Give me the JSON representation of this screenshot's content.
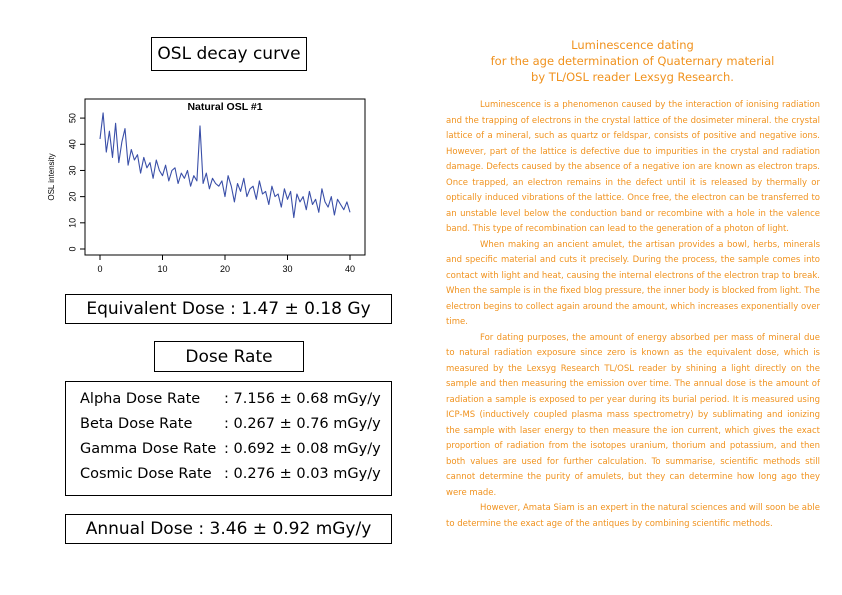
{
  "left_panel": {
    "chart_heading": "OSL decay curve",
    "equivalent_dose": "Equivalent Dose : 1.47 ± 0.18 Gy",
    "dose_rate_heading": "Dose Rate",
    "dose_rates": [
      {
        "name": "Alpha Dose Rate",
        "value": ": 7.156 ± 0.68 mGy/y"
      },
      {
        "name": "Beta Dose Rate",
        "value": ": 0.267 ± 0.76 mGy/y"
      },
      {
        "name": "Gamma Dose Rate",
        "value": ": 0.692 ± 0.08 mGy/y"
      },
      {
        "name": "Cosmic Dose Rate",
        "value": ": 0.276 ± 0.03 mGy/y"
      }
    ],
    "annual_dose": "Annual Dose : 3.46 ± 0.92 mGy/y"
  },
  "chart_data": {
    "type": "line",
    "title": "Natural OSL #1",
    "xlabel": "",
    "ylabel": "OSL intensity",
    "xlim": [
      0,
      40
    ],
    "ylim": [
      0,
      55
    ],
    "xticks": [
      0,
      10,
      20,
      30,
      40
    ],
    "yticks": [
      0,
      10,
      20,
      30,
      40,
      50
    ],
    "line_color": "#3a4fa8",
    "grid": false,
    "x": [
      0,
      0.5,
      1,
      1.5,
      2,
      2.5,
      3,
      3.5,
      4,
      4.5,
      5,
      5.5,
      6,
      6.5,
      7,
      7.5,
      8,
      8.5,
      9,
      9.5,
      10,
      10.5,
      11,
      11.5,
      12,
      12.5,
      13,
      13.5,
      14,
      14.5,
      15,
      15.5,
      16,
      16.5,
      17,
      17.5,
      18,
      18.5,
      19,
      19.5,
      20,
      20.5,
      21,
      21.5,
      22,
      22.5,
      23,
      23.5,
      24,
      24.5,
      25,
      25.5,
      26,
      26.5,
      27,
      27.5,
      28,
      28.5,
      29,
      29.5,
      30,
      30.5,
      31,
      31.5,
      32,
      32.5,
      33,
      33.5,
      34,
      34.5,
      35,
      35.5,
      36,
      36.5,
      37,
      37.5,
      38,
      38.5,
      39,
      39.5,
      40
    ],
    "y": [
      42,
      52,
      37,
      45,
      35,
      48,
      33,
      41,
      46,
      32,
      38,
      34,
      36,
      29,
      35,
      31,
      33,
      27,
      34,
      30,
      28,
      32,
      26,
      30,
      31,
      25,
      29,
      27,
      30,
      24,
      28,
      26,
      47,
      25,
      29,
      23,
      27,
      25,
      24,
      26,
      20,
      28,
      24,
      18,
      25,
      22,
      27,
      20,
      23,
      24,
      19,
      26,
      21,
      22,
      17,
      24,
      20,
      21,
      16,
      23,
      19,
      22,
      12,
      21,
      18,
      20,
      15,
      22,
      17,
      19,
      14,
      23,
      18,
      16,
      20,
      13,
      19,
      17,
      15,
      18,
      14
    ]
  },
  "article": {
    "title_lines": [
      "Luminescence dating",
      "for the age determination of Quaternary material",
      "by TL/OSL reader Lexsyg Research."
    ],
    "paragraphs": [
      "Luminescence is a phenomenon caused by the interaction of ionising radiation and the trapping of electrons in the crystal lattice of the dosimeter mineral. the crystal lattice of a mineral, such as quartz or feldspar, consists of positive and negative ions. However, part of the lattice is defective due to impurities in the crystal and radiation damage. Defects caused by the absence of a negative ion are known as electron traps. Once trapped, an electron remains in the defect until it is released by thermally or optically induced vibrations of the lattice. Once free, the electron can be transferred to an unstable level below the conduction band or recombine with a hole in the valence band. This type of recombination can lead to the generation of a photon of light.",
      "When making an ancient amulet, the artisan provides a bowl, herbs, minerals and specific material and cuts it precisely. During the process, the sample comes into contact with light and heat, causing the internal electrons of the electron trap to break. When the sample is in the fixed blog pressure, the inner body is blocked from light. The electron begins to collect again around the amount, which increases exponentially over time.",
      "For dating purposes, the amount of energy absorbed per mass of mineral due to natural radiation exposure since zero is known as the equivalent dose, which is measured by the Lexsyg Research TL/OSL reader by shining a light directly on the sample and then measuring the emission over time. The annual dose is the amount of radiation a sample is exposed to per year during its burial period. It is measured using ICP-MS (inductively coupled plasma mass spectrometry) by sublimating and ionizing the sample with laser energy to then measure the ion current, which gives the exact proportion of radiation from the isotopes uranium, thorium and potassium, and then both values are used for further calculation. To summarise, scientific methods still cannot determine the purity of amulets, but they can determine how long ago they were made.",
      "However, Amata Siam is an expert in the natural sciences and will soon be able to determine the exact age of the antiques by combining scientific methods."
    ]
  }
}
